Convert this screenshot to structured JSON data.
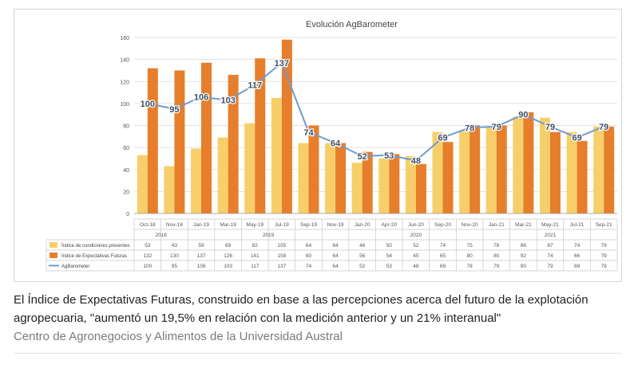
{
  "chart_data": {
    "type": "bar",
    "title": "Evolución AgBarometer",
    "categories": [
      "Oct-18",
      "Nov-18",
      "Jan-19",
      "Mar-19",
      "May-19",
      "Jul-19",
      "Sep-19",
      "Nov-19",
      "Jan-20",
      "Apr-20",
      "Jun-20",
      "Sep-20",
      "Nov-20",
      "Jan-21",
      "Mar-21",
      "May-21",
      "Jul-21",
      "Sep-21"
    ],
    "year_groups": [
      {
        "label": "2018",
        "from": 0,
        "to": 1
      },
      {
        "label": "2019",
        "from": 2,
        "to": 7
      },
      {
        "label": "2020",
        "from": 8,
        "to": 12
      },
      {
        "label": "2021",
        "from": 13,
        "to": 17
      }
    ],
    "ylim": [
      0,
      160
    ],
    "yticks": [
      0,
      20,
      40,
      60,
      80,
      100,
      120,
      140,
      160
    ],
    "grid": true,
    "legend_position": "table-below",
    "series": [
      {
        "name": "Índice de condiciones presentes",
        "kind": "bar",
        "color": "#f7cf6a",
        "values": [
          53,
          43,
          59,
          69,
          82,
          105,
          64,
          64,
          46,
          50,
          52,
          74,
          75,
          78,
          88,
          87,
          74,
          79
        ]
      },
      {
        "name": "Índice de Expectativas Futuras",
        "kind": "bar",
        "color": "#e67e2c",
        "values": [
          132,
          130,
          137,
          126,
          141,
          158,
          80,
          64,
          56,
          54,
          45,
          65,
          80,
          80,
          92,
          74,
          66,
          79
        ]
      },
      {
        "name": "AgBarometer",
        "kind": "line",
        "color": "#6f9bd1",
        "values": [
          100,
          95,
          106,
          103,
          117,
          137,
          74,
          64,
          52,
          53,
          48,
          69,
          78,
          79,
          90,
          79,
          69,
          79
        ]
      }
    ]
  },
  "caption": {
    "text": "El Índice de Expectativas Futuras, construido en base a las percepciones acerca del futuro de la explotación agropecuaria, \"aumentó un 19,5% en relación con la medición anterior y un 21% interanual\"",
    "credit": "Centro de Agronegocios y Alimentos de la Universidad Austral"
  }
}
